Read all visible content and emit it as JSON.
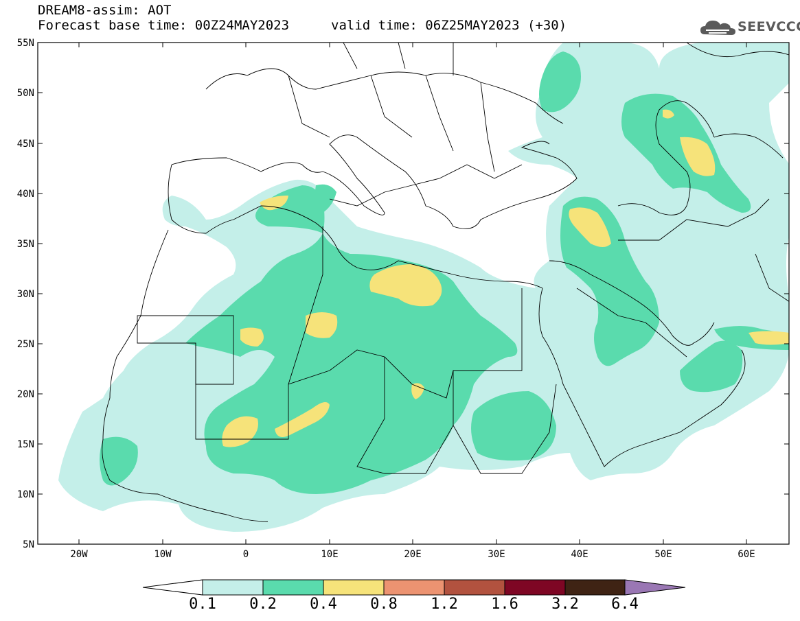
{
  "header": {
    "title": "DREAM8-assim: AOT",
    "base_time": "Forecast base time: 00Z24MAY2023",
    "valid_time": "valid time: 06Z25MAY2023 (+30)"
  },
  "logo": {
    "text": "SEEVCCC",
    "icon": "cloud-logo-icon"
  },
  "map": {
    "lat_labels": [
      "55N",
      "50N",
      "45N",
      "40N",
      "35N",
      "30N",
      "25N",
      "20N",
      "15N",
      "10N",
      "5N"
    ],
    "lon_labels": [
      "20W",
      "10W",
      "0",
      "10E",
      "20E",
      "30E",
      "40E",
      "50E",
      "60E"
    ]
  },
  "colorbar": {
    "colors": [
      "#ffffff",
      "#c4efe9",
      "#5adbad",
      "#f6e37a",
      "#ec9371",
      "#b2523f",
      "#7e0624",
      "#3f2314",
      "#9a77b4"
    ],
    "labels": [
      "0.1",
      "0.2",
      "0.4",
      "0.8",
      "1.2",
      "1.6",
      "3.2",
      "6.4"
    ]
  }
}
